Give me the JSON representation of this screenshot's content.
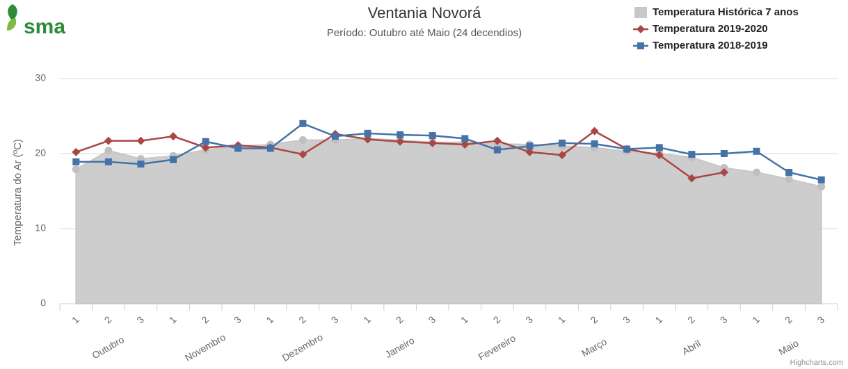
{
  "logo": {
    "text": "sma"
  },
  "chart_data": {
    "type": "line",
    "title": "Ventania Novorá",
    "subtitle": "Período: Outubro até Maio (24 decendios)",
    "y_axis_title": "Temperatura do Ar (ºC)",
    "credit": "Highcharts.com",
    "categories": [
      "1",
      "2",
      "3",
      "1",
      "2",
      "3",
      "1",
      "2",
      "3",
      "1",
      "2",
      "3",
      "1",
      "2",
      "3",
      "1",
      "2",
      "3",
      "1",
      "2",
      "3",
      "1",
      "2",
      "3"
    ],
    "groups": [
      "Outubro",
      "Novembro",
      "Dezembro",
      "Janeiro",
      "Fevereiro",
      "Março",
      "Abril",
      "Maio"
    ],
    "ylim": [
      0,
      30
    ],
    "yticks": [
      0,
      10,
      20,
      30
    ],
    "grid": true,
    "legend": "top-right",
    "series": [
      {
        "name": "Temperatura Histórica 7 anos",
        "type": "area",
        "color": "#c8c8c8",
        "marker": "circle",
        "values": [
          17.9,
          20.4,
          19.3,
          19.7,
          20.5,
          21.0,
          21.2,
          21.8,
          21.8,
          22.0,
          21.8,
          21.5,
          21.5,
          21.3,
          21.2,
          21.0,
          20.8,
          20.3,
          20.0,
          19.5,
          18.1,
          17.5,
          16.6,
          15.6
        ]
      },
      {
        "name": "Temperatura 2019-2020",
        "type": "line",
        "color": "#aa4643",
        "marker": "diamond",
        "values": [
          20.2,
          21.7,
          21.7,
          22.3,
          20.8,
          21.1,
          20.8,
          19.9,
          22.6,
          21.9,
          21.6,
          21.4,
          21.2,
          21.7,
          20.2,
          19.8,
          23.0,
          20.6,
          19.8,
          16.7,
          17.5,
          null,
          null,
          null
        ]
      },
      {
        "name": "Temperatura 2018-2019",
        "type": "line",
        "color": "#4572a7",
        "marker": "square",
        "values": [
          18.9,
          18.9,
          18.6,
          19.2,
          21.6,
          20.7,
          20.7,
          24.0,
          22.3,
          22.7,
          22.5,
          22.4,
          22.0,
          20.5,
          21.0,
          21.4,
          21.3,
          20.6,
          20.8,
          19.9,
          20.0,
          20.3,
          17.5,
          16.5
        ]
      }
    ]
  }
}
